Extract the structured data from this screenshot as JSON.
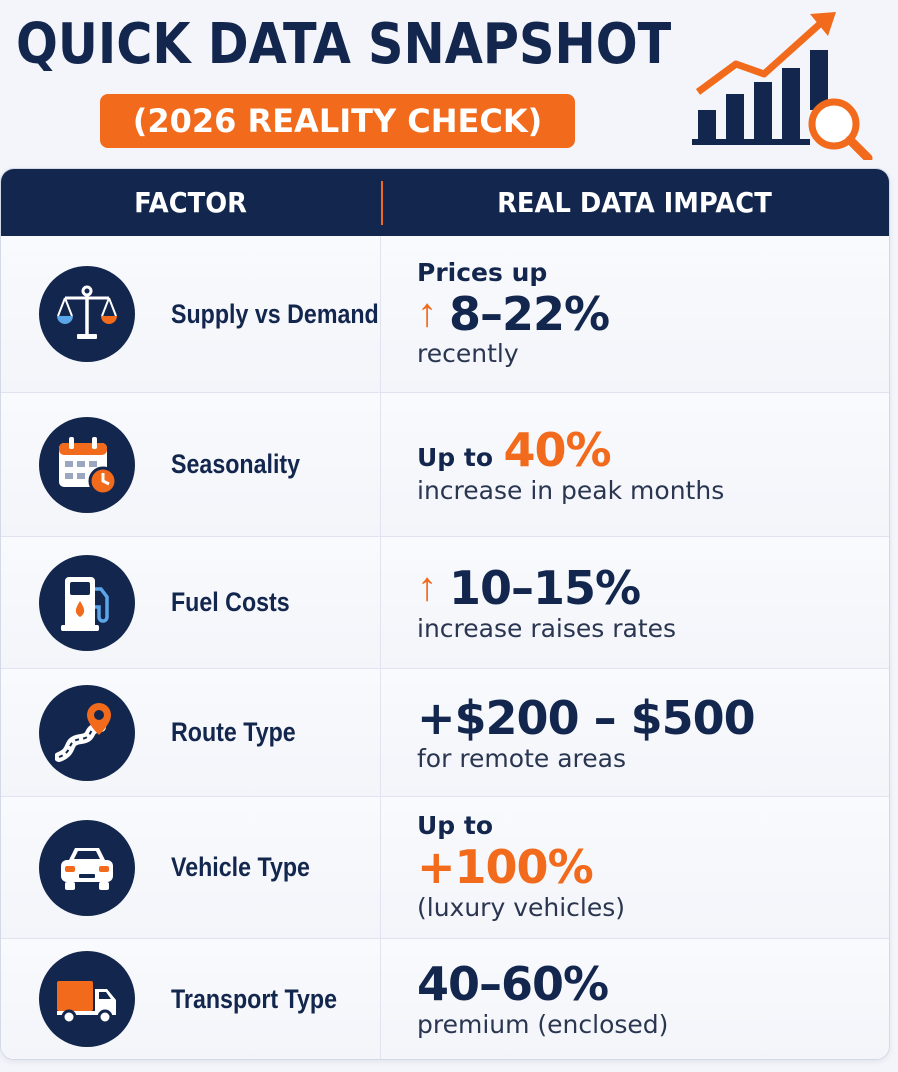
{
  "header": {
    "title": "QUICK DATA SNAPSHOT",
    "subtitle": "(2026 REALITY CHECK)",
    "icon": "bar-chart-growth-magnifier-icon"
  },
  "colors": {
    "navy": "#13264d",
    "orange": "#f26a1b",
    "background": "#f3f5fa"
  },
  "table": {
    "headers": [
      "FACTOR",
      "REAL DATA IMPACT"
    ],
    "rows": [
      {
        "icon": "scale-balance-icon",
        "factor": "Supply vs Demand",
        "impact_lead": "Prices up",
        "impact_arrow": "↑",
        "impact_value": "8–22%",
        "impact_note": "recently"
      },
      {
        "icon": "calendar-clock-icon",
        "factor": "Seasonality",
        "impact_lead": "Up to",
        "impact_value": "40%",
        "impact_note": "increase in peak months"
      },
      {
        "icon": "fuel-pump-icon",
        "factor": "Fuel Costs",
        "impact_arrow": "↑",
        "impact_value": "10–15%",
        "impact_note": "increase raises rates"
      },
      {
        "icon": "winding-road-pin-icon",
        "factor": "Route Type",
        "impact_value": "+$200 – $500",
        "impact_note": "for remote areas"
      },
      {
        "icon": "car-front-icon",
        "factor": "Vehicle Type",
        "impact_lead": "Up to",
        "impact_value": "+100%",
        "impact_note": "(luxury vehicles)"
      },
      {
        "icon": "delivery-truck-icon",
        "factor": "Transport Type",
        "impact_value": "40–60%",
        "impact_note": "premium (enclosed)"
      }
    ]
  }
}
